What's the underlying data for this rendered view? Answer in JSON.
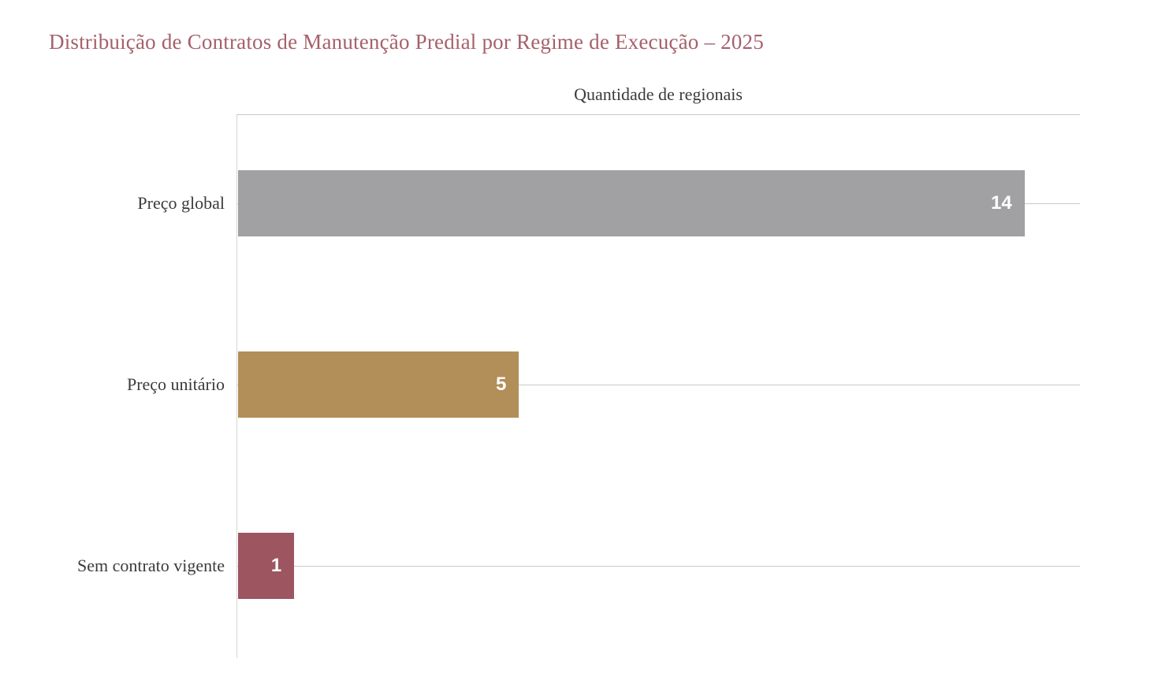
{
  "chart_data": {
    "type": "bar",
    "orientation": "horizontal",
    "title": "Distribuição de Contratos de Manutenção Predial por Regime de Execução – 2025",
    "value_axis_label": "Quantidade de regionais",
    "categories": [
      "Preço global",
      "Preço unitário",
      "Sem contrato vigente"
    ],
    "values": [
      14,
      5,
      1
    ],
    "bar_colors": [
      "#a1a0a2",
      "#b28f58",
      "#9d5560"
    ],
    "value_label_color": "#ffffff",
    "xlim": [
      0,
      15
    ],
    "grid": "horizontal category lines extending to right plot edge",
    "legend_position": "none",
    "colors": {
      "title": "#a5616b",
      "category_label": "#3b3b3b",
      "axis_title": "#3b3b3b",
      "gridline": "#c9c9c9",
      "axis_line": "#d6d6d6",
      "background": "#ffffff"
    }
  }
}
